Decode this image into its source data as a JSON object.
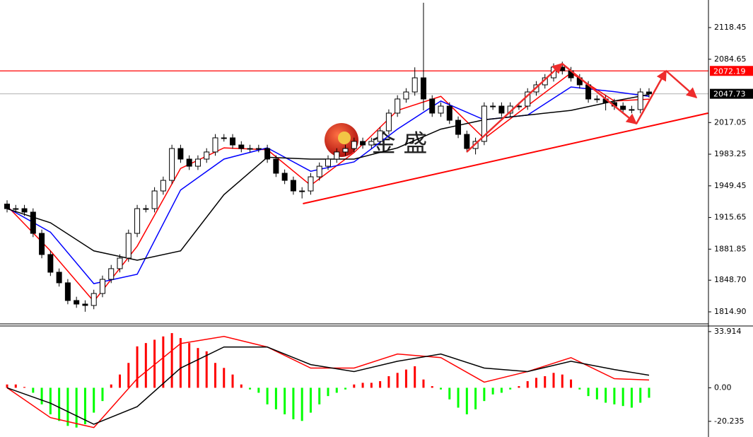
{
  "chart_data": [
    {
      "type": "candlestick",
      "watermark": "金 盛",
      "open": [
        1930.0,
        1925.1,
        1925.1,
        1921.4,
        1898.7,
        1876.1,
        1857.2,
        1845.9,
        1827.0,
        1823.2,
        1821.7,
        1834.5,
        1849.6,
        1861.0,
        1872.3,
        1898.7,
        1925.1,
        1925.1,
        1944.0,
        1955.3,
        1989.3,
        1978.0,
        1970.4,
        1978.0,
        1985.6,
        2000.7,
        2000.7,
        1993.1,
        1989.3,
        1989.3,
        1989.3,
        1978.0,
        1962.9,
        1955.3,
        1944.0,
        1944.0,
        1959.1,
        1970.4,
        1978.0,
        1985.6,
        1989.3,
        1996.9,
        1993.1,
        1996.9,
        2008.2,
        2027.1,
        2042.2,
        2049.7,
        2064.8,
        2042.2,
        2027.1,
        2034.6,
        2019.5,
        2004.4,
        1989.3,
        1996.9,
        2034.6,
        2034.6,
        2027.1,
        2034.6,
        2034.6,
        2049.7,
        2057.3,
        2064.8,
        2076.2,
        2072.4,
        2064.8,
        2057.3,
        2042.2,
        2042.2,
        2038.4,
        2034.6,
        2030.9,
        2030.9,
        2049.7
      ],
      "high": [
        1934.0,
        1929.1,
        1929.1,
        1925.4,
        1902.7,
        1880.1,
        1861.2,
        1849.9,
        1831.0,
        1827.2,
        1838.5,
        1853.6,
        1865.0,
        1876.3,
        1902.7,
        1929.1,
        1929.1,
        1948.0,
        1959.3,
        1993.3,
        1993.3,
        1982.0,
        1982.0,
        1989.6,
        2004.7,
        2004.7,
        2004.7,
        1997.1,
        1993.3,
        1993.3,
        1993.3,
        1982.0,
        1966.9,
        1959.3,
        1948.0,
        1963.1,
        1974.4,
        1982.0,
        1989.6,
        1993.3,
        2000.9,
        2000.9,
        2000.9,
        2012.2,
        2031.1,
        2046.2,
        2053.7,
        2076.0,
        2145.0,
        2046.2,
        2038.6,
        2038.6,
        2023.5,
        2008.4,
        2000.9,
        2038.6,
        2038.6,
        2038.6,
        2038.6,
        2038.6,
        2053.7,
        2061.3,
        2068.8,
        2080.2,
        2082.0,
        2076.4,
        2068.8,
        2061.3,
        2046.2,
        2046.2,
        2042.4,
        2038.6,
        2034.9,
        2053.7,
        2053.7
      ],
      "low": [
        1921.1,
        1921.1,
        1917.4,
        1894.7,
        1872.1,
        1853.2,
        1841.9,
        1823.0,
        1819.2,
        1815.0,
        1817.7,
        1830.5,
        1845.6,
        1857.0,
        1868.3,
        1894.7,
        1921.1,
        1921.1,
        1940.0,
        1951.3,
        1974.0,
        1966.4,
        1966.4,
        1974.0,
        1981.6,
        1996.7,
        1989.1,
        1985.3,
        1985.3,
        1985.3,
        1974.0,
        1958.9,
        1951.3,
        1940.0,
        1936.0,
        1940.0,
        1955.1,
        1966.4,
        1974.0,
        1981.6,
        1985.3,
        1989.1,
        1989.1,
        1992.9,
        2004.2,
        2023.1,
        2038.2,
        2045.7,
        2030.0,
        2023.1,
        2023.1,
        2015.5,
        2000.4,
        1985.3,
        1983.0,
        1992.9,
        2030.6,
        2023.1,
        2023.1,
        2030.6,
        2030.6,
        2045.7,
        2053.3,
        2060.8,
        2068.4,
        2060.8,
        2053.3,
        2038.2,
        2038.2,
        2030.0,
        2030.6,
        2026.9,
        2026.9,
        2026.9,
        2043.7
      ],
      "close": [
        1925.1,
        1925.1,
        1921.4,
        1898.7,
        1876.1,
        1857.2,
        1845.9,
        1827.0,
        1823.2,
        1821.7,
        1834.5,
        1849.6,
        1861.0,
        1872.3,
        1898.7,
        1925.1,
        1925.1,
        1944.0,
        1955.3,
        1989.3,
        1978.0,
        1970.4,
        1978.0,
        1985.6,
        2000.7,
        2000.7,
        1993.1,
        1989.3,
        1989.3,
        1989.3,
        1978.0,
        1962.9,
        1955.3,
        1944.0,
        1944.0,
        1959.1,
        1970.4,
        1978.0,
        1985.6,
        1989.3,
        1996.9,
        1993.1,
        1996.9,
        2008.2,
        2027.1,
        2042.2,
        2049.7,
        2064.8,
        2042.2,
        2027.1,
        2034.6,
        2019.5,
        2004.4,
        1989.3,
        1996.9,
        2034.6,
        2034.6,
        2027.1,
        2034.6,
        2034.6,
        2049.7,
        2057.3,
        2064.8,
        2076.2,
        2072.4,
        2064.8,
        2057.3,
        2042.2,
        2042.2,
        2038.4,
        2034.6,
        2030.9,
        2030.9,
        2049.7,
        2047.7
      ],
      "series": [
        {
          "color": "#ff0000",
          "x": [
            0,
            5,
            10,
            15,
            20,
            25,
            30,
            35,
            40,
            45,
            50,
            55,
            60,
            65,
            70,
            74
          ],
          "values": [
            1928,
            1880,
            1826,
            1885,
            1968,
            1990,
            1988,
            1950,
            1985,
            2030,
            2045,
            2000,
            2035,
            2070,
            2040,
            2042
          ]
        },
        {
          "color": "#0000ff",
          "x": [
            0,
            5,
            10,
            15,
            20,
            25,
            30,
            35,
            40,
            45,
            50,
            55,
            60,
            65,
            70,
            74
          ],
          "values": [
            1926,
            1900,
            1845,
            1855,
            1945,
            1978,
            1990,
            1965,
            1975,
            2010,
            2040,
            2020,
            2025,
            2055,
            2050,
            2045
          ]
        },
        {
          "color": "#000000",
          "x": [
            0,
            5,
            10,
            15,
            20,
            25,
            30,
            35,
            40,
            45,
            50,
            55,
            60,
            65,
            70,
            74
          ],
          "values": [
            1925,
            1910,
            1880,
            1870,
            1880,
            1940,
            1980,
            1978,
            1978,
            1990,
            2010,
            2020,
            2025,
            2030,
            2040,
            2047
          ]
        }
      ],
      "levels": [
        {
          "value": 2072.19,
          "color": "#ff0000",
          "box_color": "#ff0000"
        },
        {
          "value": 2047.73,
          "color": "#c0c0c0",
          "box_color": "#000000"
        }
      ],
      "trendline": {
        "color": "#ff0000",
        "x": [
          34.1,
          80.8
        ],
        "values": [
          1930.4,
          2027.1
        ]
      },
      "ylim": [
        1802.06,
        2147.9
      ],
      "yticks": [
        2118.45,
        2084.65,
        2017.05,
        1983.25,
        1949.45,
        1915.65,
        1881.85,
        {
          "value": 1848.7,
          "label": "1848.70"
        },
        {
          "value": 1814.9,
          "label": "1814.90"
        }
      ]
    },
    {
      "type": "macd",
      "up_color": "#ff0000",
      "down_color": "#00ff00",
      "values": [
        2,
        2,
        0.5,
        -3,
        -10,
        -16,
        -20,
        -23,
        -24,
        -22,
        -15,
        -8,
        2,
        8,
        15,
        25,
        27,
        29,
        31,
        33,
        30,
        27,
        24,
        22,
        15,
        12,
        8,
        2,
        -1,
        -3,
        -10,
        -13,
        -16,
        -19,
        -20,
        -15,
        -10,
        -5,
        -3,
        -1,
        2,
        3,
        3,
        4,
        7,
        9,
        11,
        13,
        5,
        1,
        -1,
        -7,
        -12,
        -16,
        -13,
        -8,
        -4,
        -3,
        -1,
        1,
        4,
        6,
        7,
        9,
        8,
        5,
        -1,
        -5,
        -7,
        -9,
        -10,
        -11,
        -12,
        -9,
        -6
      ],
      "series": [
        {
          "color": "#ff0000",
          "x": [
            0,
            5,
            10,
            15,
            20,
            25,
            30,
            35,
            40,
            45,
            50,
            55,
            60,
            65,
            70,
            74
          ],
          "values": [
            0,
            -18,
            -24,
            5.5,
            26.7,
            31,
            24.6,
            11.9,
            11.9,
            20.4,
            18.2,
            3.4,
            9.8,
            18.2,
            5.5,
            4.7
          ]
        },
        {
          "color": "#000000",
          "x": [
            0,
            5,
            10,
            15,
            20,
            25,
            30,
            35,
            40,
            45,
            50,
            55,
            60,
            65,
            70,
            74
          ],
          "values": [
            0,
            -9.3,
            -22,
            -11.4,
            11.9,
            24.6,
            24.6,
            14,
            9.8,
            16,
            20.4,
            11.9,
            9.8,
            16,
            11,
            7.6
          ]
        }
      ],
      "ylim": [
        -29.7,
        37.3
      ],
      "yticks": [
        33.914,
        {
          "value": 0,
          "label": "0.00"
        },
        -20.235
      ]
    }
  ]
}
